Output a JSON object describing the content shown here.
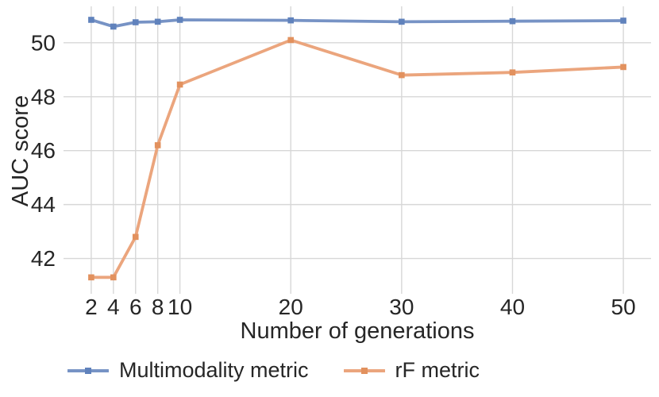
{
  "chart_data": {
    "type": "line",
    "title": "",
    "xlabel": "Number of generations",
    "ylabel": "AUC score",
    "x": [
      2,
      4,
      6,
      8,
      10,
      20,
      30,
      40,
      50
    ],
    "series": [
      {
        "name": "Multimodality metric",
        "color": "#7793C5",
        "marker_color": "#6082BC",
        "marker": "square",
        "values": [
          50.85,
          50.6,
          50.76,
          50.78,
          50.85,
          50.83,
          50.78,
          50.8,
          50.82
        ]
      },
      {
        "name": "rF metric",
        "color": "#EBA57D",
        "marker_color": "#E2915E",
        "marker": "square",
        "values": [
          41.3,
          41.3,
          42.8,
          46.2,
          48.45,
          50.1,
          48.8,
          48.9,
          49.1
        ]
      }
    ],
    "xticks": [
      2,
      4,
      6,
      8,
      10,
      20,
      30,
      40,
      50
    ],
    "yticks": [
      42,
      44,
      46,
      48,
      50
    ],
    "xlim": [
      -0.5,
      52.5
    ],
    "ylim": [
      40.75,
      51.35
    ],
    "grid": true,
    "legend_position": "bottom"
  },
  "style": {
    "grid_color": "#d7d7d7",
    "text_color": "#262626",
    "background": "#ffffff"
  }
}
